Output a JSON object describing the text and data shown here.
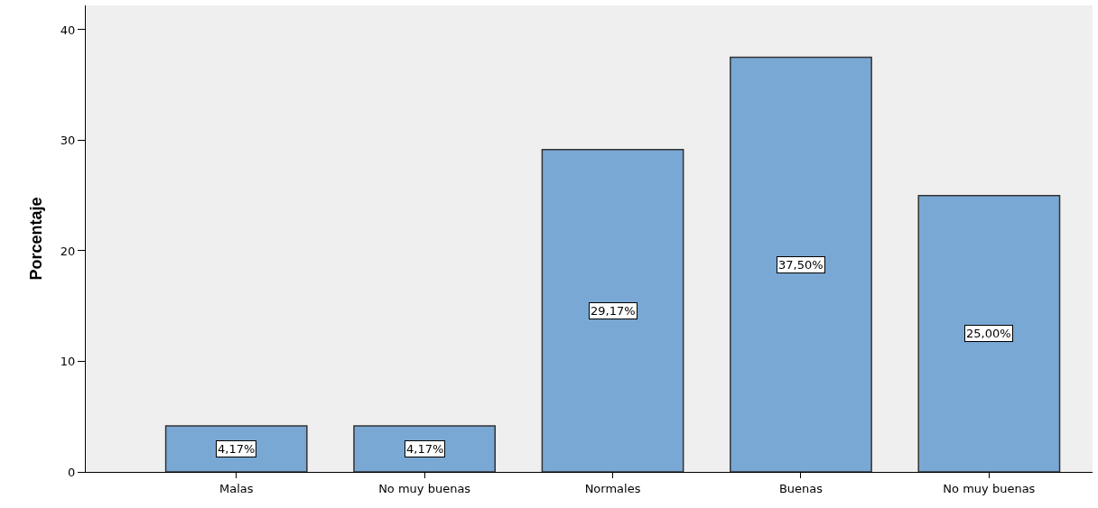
{
  "chart_data": {
    "type": "bar",
    "ylabel": "Porcentaje",
    "categories": [
      "Malas",
      "No muy buenas",
      "Normales",
      "Buenas",
      "No muy buenas"
    ],
    "values": [
      4.17,
      4.17,
      29.17,
      37.5,
      25.0
    ],
    "value_labels": [
      "4,17%",
      "4,17%",
      "29,17%",
      "37,50%",
      "25,00%"
    ],
    "color": "#79a8d5",
    "ylim": [
      0,
      42.2
    ],
    "yticks": [
      0,
      10,
      20,
      30,
      40
    ],
    "grid": false,
    "legend": false
  }
}
